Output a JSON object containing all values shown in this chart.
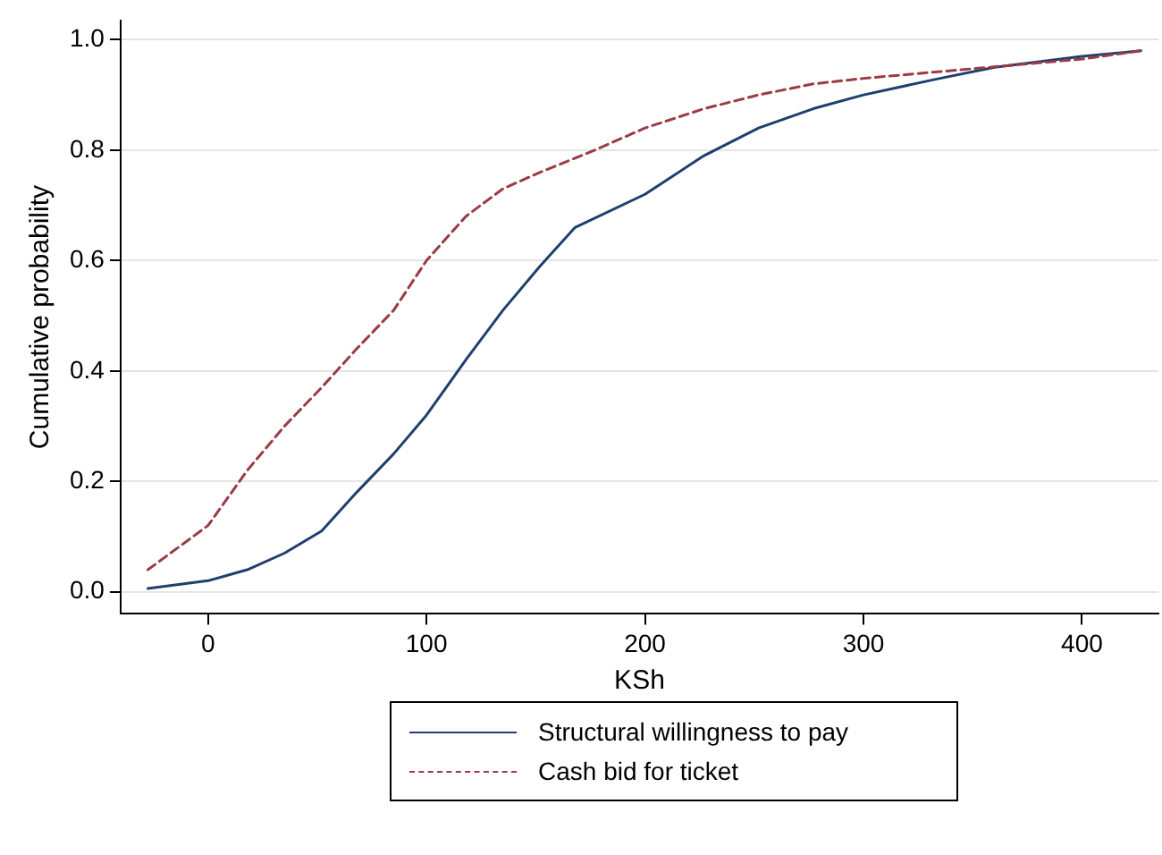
{
  "chart_data": {
    "type": "line",
    "xlabel": "KSh",
    "ylabel": "Cumulative probability",
    "xlim": [
      -40,
      435
    ],
    "xticks": [
      0,
      100,
      200,
      300,
      400
    ],
    "ylim": [
      -0.04,
      1.035
    ],
    "yticks": [
      {
        "value": 0,
        "label": "0.0"
      },
      {
        "value": 0.2,
        "label": "0.2"
      },
      {
        "value": 0.4,
        "label": "0.4"
      },
      {
        "value": 0.6,
        "label": "0.6"
      },
      {
        "value": 0.8,
        "label": "0.8"
      },
      {
        "value": 1,
        "label": "1.0"
      }
    ],
    "grid": "y",
    "legend": "bottom",
    "marker": "none",
    "series": [
      {
        "name": "Structural willingness to pay",
        "color": "#1f3f6e",
        "line_style": "solid",
        "x": [
          -27.5,
          0,
          18,
          35,
          52,
          68,
          85,
          100,
          118,
          135,
          152,
          168,
          200,
          227,
          252,
          277,
          300,
          335,
          360,
          400,
          427
        ],
        "values": [
          0.006,
          0.02,
          0.04,
          0.07,
          0.11,
          0.18,
          0.25,
          0.32,
          0.42,
          0.51,
          0.59,
          0.66,
          0.72,
          0.79,
          0.84,
          0.875,
          0.9,
          0.93,
          0.95,
          0.97,
          0.98
        ]
      },
      {
        "name": "Cash bid for ticket",
        "color": "#9b3b45",
        "line_style": "dashed",
        "x": [
          -27.5,
          0,
          18,
          35,
          52,
          68,
          85,
          100,
          118,
          135,
          152,
          177,
          200,
          227,
          252,
          277,
          300,
          343,
          400,
          427
        ],
        "values": [
          0.04,
          0.12,
          0.22,
          0.3,
          0.37,
          0.44,
          0.51,
          0.6,
          0.68,
          0.73,
          0.76,
          0.8,
          0.84,
          0.875,
          0.9,
          0.92,
          0.93,
          0.945,
          0.965,
          0.98
        ]
      }
    ]
  }
}
